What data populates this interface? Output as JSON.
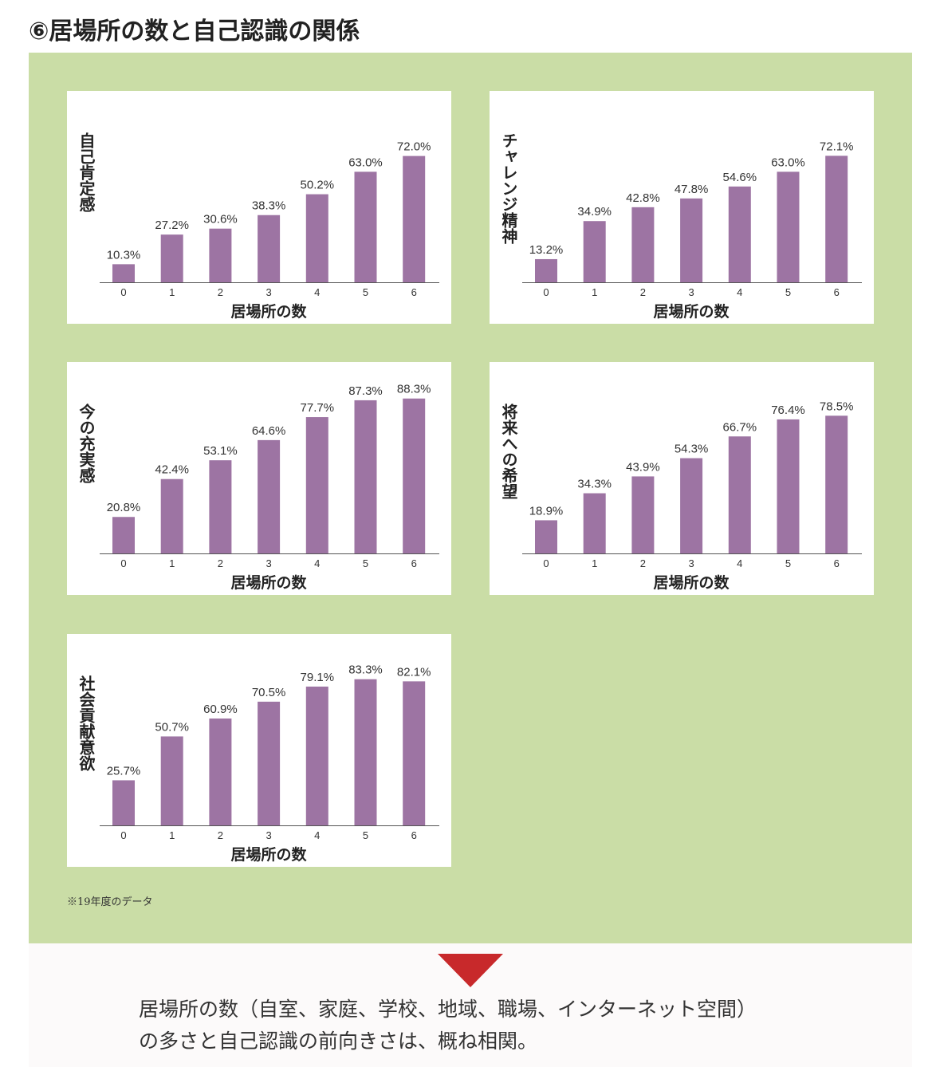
{
  "title": "⑥居場所の数と自己認識の関係",
  "note": "※19年度のデータ",
  "summary": {
    "line1": "居場所の数（自室、家庭、学校、地域、職場、インターネット空間）",
    "line2": "の多さと自己認識の前向きさは、概ね相関。"
  },
  "colors": {
    "bar": "#9d74a3",
    "panel_bg": "#cadda6",
    "arrow": "#c8292b"
  },
  "chart_data": [
    {
      "type": "bar",
      "ylabel": "自己肯定感",
      "xlabel": "居場所の数",
      "categories": [
        "0",
        "1",
        "2",
        "3",
        "4",
        "5",
        "6"
      ],
      "values": [
        10.3,
        27.2,
        30.6,
        38.3,
        50.2,
        63.0,
        72.0
      ],
      "labels": [
        "10.3%",
        "27.2%",
        "30.6%",
        "38.3%",
        "50.2%",
        "63.0%",
        "72.0%"
      ],
      "ylim": [
        0,
        100
      ]
    },
    {
      "type": "bar",
      "ylabel": "チャレンジ精神",
      "xlabel": "居場所の数",
      "categories": [
        "0",
        "1",
        "2",
        "3",
        "4",
        "5",
        "6"
      ],
      "values": [
        13.2,
        34.9,
        42.8,
        47.8,
        54.6,
        63.0,
        72.1
      ],
      "labels": [
        "13.2%",
        "34.9%",
        "42.8%",
        "47.8%",
        "54.6%",
        "63.0%",
        "72.1%"
      ],
      "ylim": [
        0,
        100
      ]
    },
    {
      "type": "bar",
      "ylabel": "今の充実感",
      "xlabel": "居場所の数",
      "categories": [
        "0",
        "1",
        "2",
        "3",
        "4",
        "5",
        "6"
      ],
      "values": [
        20.8,
        42.4,
        53.1,
        64.6,
        77.7,
        87.3,
        88.3
      ],
      "labels": [
        "20.8%",
        "42.4%",
        "53.1%",
        "64.6%",
        "77.7%",
        "87.3%",
        "88.3%"
      ],
      "ylim": [
        0,
        100
      ]
    },
    {
      "type": "bar",
      "ylabel": "将来への希望",
      "xlabel": "居場所の数",
      "categories": [
        "0",
        "1",
        "2",
        "3",
        "4",
        "5",
        "6"
      ],
      "values": [
        18.9,
        34.3,
        43.9,
        54.3,
        66.7,
        76.4,
        78.5
      ],
      "labels": [
        "18.9%",
        "34.3%",
        "43.9%",
        "54.3%",
        "66.7%",
        "76.4%",
        "78.5%"
      ],
      "ylim": [
        0,
        100
      ]
    },
    {
      "type": "bar",
      "ylabel": "社会貢献意欲",
      "xlabel": "居場所の数",
      "categories": [
        "0",
        "1",
        "2",
        "3",
        "4",
        "5",
        "6"
      ],
      "values": [
        25.7,
        50.7,
        60.9,
        70.5,
        79.1,
        83.3,
        82.1
      ],
      "labels": [
        "25.7%",
        "50.7%",
        "60.9%",
        "70.5%",
        "79.1%",
        "83.3%",
        "82.1%"
      ],
      "ylim": [
        0,
        100
      ]
    }
  ]
}
